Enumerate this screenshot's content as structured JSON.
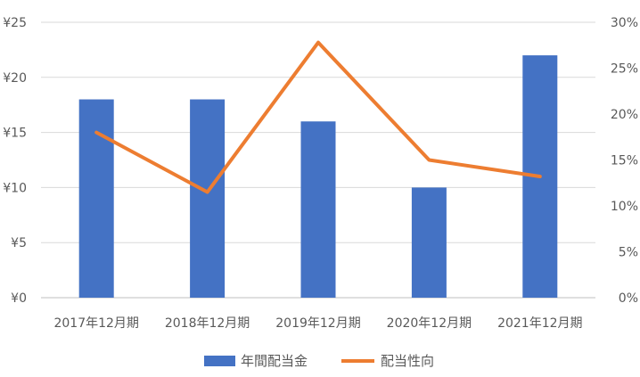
{
  "chart_data": {
    "type": "bar+line",
    "categories": [
      "2017年12月期",
      "2018年12月期",
      "2019年12月期",
      "2020年12月期",
      "2021年12月期"
    ],
    "series": [
      {
        "name": "年間配当金",
        "type": "bar",
        "axis": "left",
        "values": [
          18,
          18,
          16,
          10,
          22
        ],
        "color": "#4472C4"
      },
      {
        "name": "配当性向",
        "type": "line",
        "axis": "right",
        "values": [
          18.0,
          11.5,
          27.8,
          15.0,
          13.2
        ],
        "color": "#ED7D31"
      }
    ],
    "y_left": {
      "min": 0,
      "max": 25,
      "ticks": [
        "¥0",
        "¥5",
        "¥10",
        "¥15",
        "¥20",
        "¥25"
      ]
    },
    "y_right": {
      "min": 0,
      "max": 30,
      "ticks": [
        "0%",
        "5%",
        "10%",
        "15%",
        "20%",
        "25%",
        "30%"
      ]
    },
    "grid": true,
    "legend_position": "bottom"
  }
}
